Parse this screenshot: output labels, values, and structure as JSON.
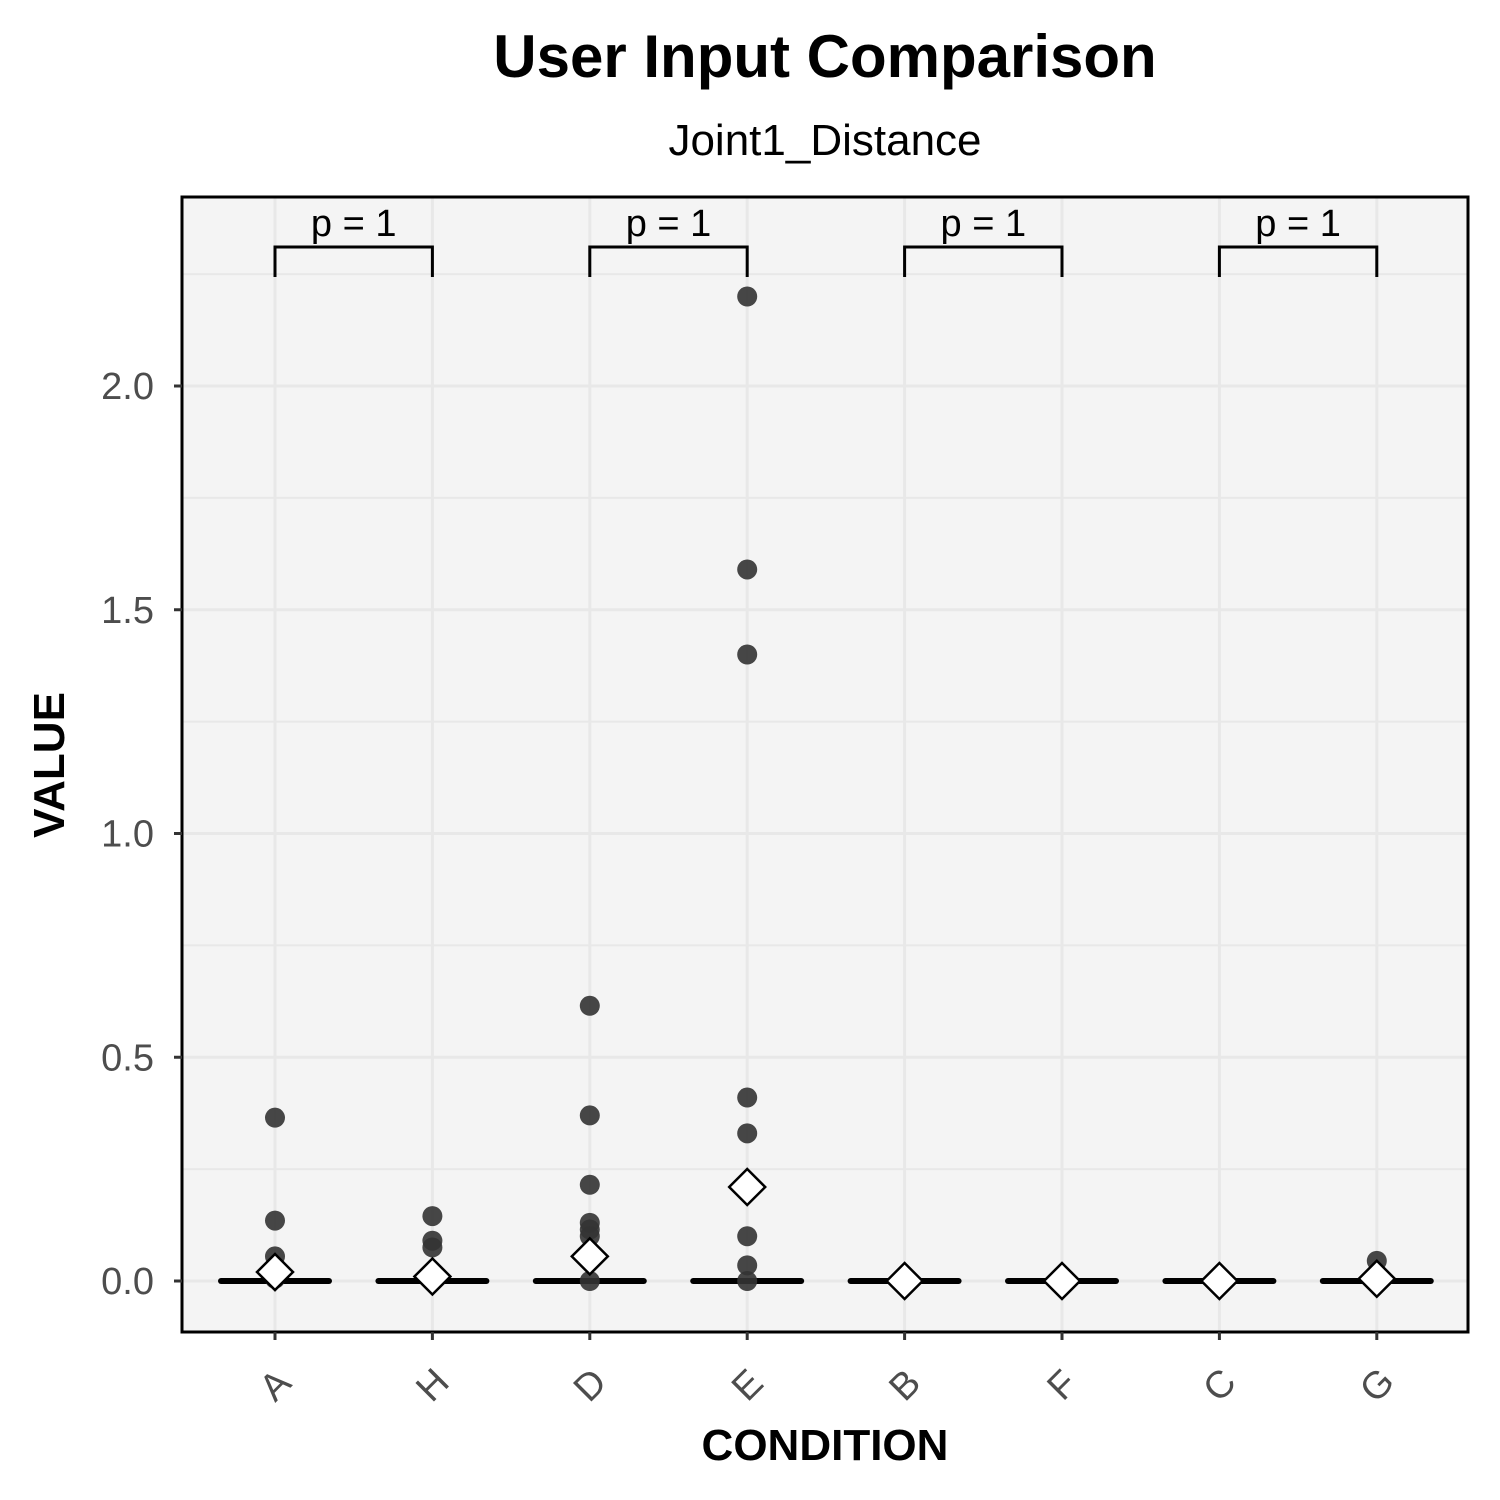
{
  "chart_data": {
    "type": "scatter",
    "title": "User Input Comparison",
    "subtitle": "Joint1_Distance",
    "xlabel": "CONDITION",
    "ylabel": "VALUE",
    "categories": [
      "A",
      "H",
      "D",
      "E",
      "B",
      "F",
      "C",
      "G"
    ],
    "yticks": [
      "0.0",
      "0.5",
      "1.0",
      "1.5",
      "2.0"
    ],
    "ylim": [
      -0.11,
      2.42
    ],
    "grid": true,
    "colors": {
      "panel_background": "#f4f4f4",
      "grid": "#e8e8e8",
      "points": "#333333",
      "median": "#000000",
      "mean_marker_fill": "#ffffff",
      "mean_marker_stroke": "#000000"
    },
    "points": [
      {
        "category": "A",
        "values": [
          0.365,
          0.135,
          0.055,
          0.02,
          0.005
        ]
      },
      {
        "category": "H",
        "values": [
          0.145,
          0.09,
          0.075,
          0.0
        ]
      },
      {
        "category": "D",
        "values": [
          0.615,
          0.37,
          0.215,
          0.13,
          0.115,
          0.1,
          0.0
        ]
      },
      {
        "category": "E",
        "values": [
          2.2,
          1.59,
          1.4,
          0.41,
          0.33,
          0.1,
          0.035,
          0.0
        ]
      },
      {
        "category": "B",
        "values": [
          0.0
        ]
      },
      {
        "category": "F",
        "values": [
          0.0
        ]
      },
      {
        "category": "C",
        "values": [
          0.0
        ]
      },
      {
        "category": "G",
        "values": [
          0.045,
          0.0
        ]
      }
    ],
    "medians": [
      0,
      0,
      0,
      0,
      0,
      0,
      0,
      0
    ],
    "means": [
      0.02,
      0.01,
      0.055,
      0.21,
      0.0,
      0.0,
      0.0,
      0.005
    ],
    "comparisons": [
      {
        "groups": [
          "A",
          "H"
        ],
        "label": "p = 1",
        "y": 2.3
      },
      {
        "groups": [
          "D",
          "E"
        ],
        "label": "p = 1",
        "y": 2.3
      },
      {
        "groups": [
          "B",
          "F"
        ],
        "label": "p = 1",
        "y": 2.3
      },
      {
        "groups": [
          "C",
          "G"
        ],
        "label": "p = 1",
        "y": 2.3
      }
    ]
  }
}
